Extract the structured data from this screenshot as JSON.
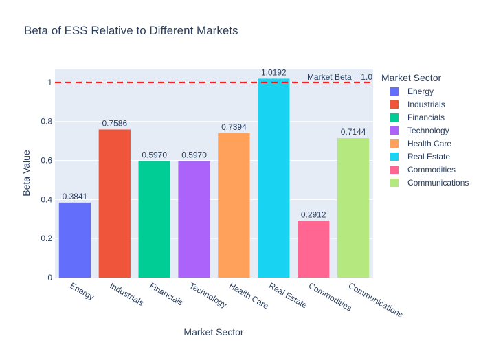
{
  "chart_data": {
    "type": "bar",
    "title": "Beta of ESS Relative to Different Markets",
    "xlabel": "Market Sector",
    "ylabel": "Beta Value",
    "ylim": [
      0,
      1.07
    ],
    "yticks": [
      0,
      0.2,
      0.4,
      0.6,
      0.8,
      1
    ],
    "ytick_labels": [
      "0",
      "0.2",
      "0.4",
      "0.6",
      "0.8",
      "1"
    ],
    "grid": true,
    "legend_title": "Market Sector",
    "legend_position": "right",
    "categories": [
      "Energy",
      "Industrials",
      "Financials",
      "Technology",
      "Health Care",
      "Real Estate",
      "Commodities",
      "Communications"
    ],
    "values": [
      0.3841,
      0.7586,
      0.597,
      0.597,
      0.7394,
      1.0192,
      0.2912,
      0.7144
    ],
    "value_labels": [
      "0.3841",
      "0.7586",
      "0.5970",
      "0.5970",
      "0.7394",
      "1.0192",
      "0.2912",
      "0.7144"
    ],
    "colors": [
      "#636efa",
      "#EF553B",
      "#00cc96",
      "#ab63fa",
      "#FFA15A",
      "#19d3f3",
      "#FF6692",
      "#B6E880"
    ],
    "reference_line": {
      "value": 1.0,
      "label": "Market Beta = 1.0",
      "color": "#ff0000"
    },
    "plot_background": "#e5ecf6"
  }
}
